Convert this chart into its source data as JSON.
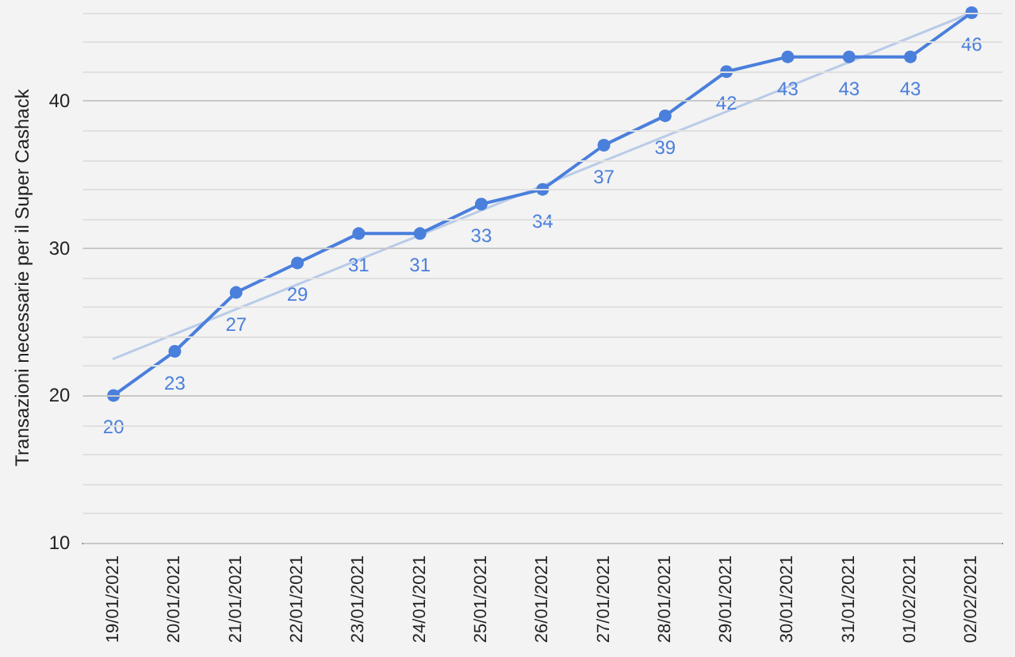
{
  "chart_data": {
    "type": "line",
    "ylabel": "Transazioni necessarie per il Super Cashack",
    "categories": [
      "19/01/2021",
      "20/01/2021",
      "21/01/2021",
      "22/01/2021",
      "23/01/2021",
      "24/01/2021",
      "25/01/2021",
      "26/01/2021",
      "27/01/2021",
      "28/01/2021",
      "29/01/2021",
      "30/01/2021",
      "31/01/2021",
      "01/02/2021",
      "02/02/2021"
    ],
    "series": [
      {
        "color": "#4a7fdc",
        "values": [
          20,
          23,
          27,
          29,
          31,
          31,
          33,
          34,
          37,
          39,
          42,
          43,
          43,
          43,
          46
        ],
        "data_labels": true,
        "marker": "circle"
      },
      {
        "type": "line",
        "color": "#b9cbe8",
        "x": [
          "19/01/2021",
          "02/02/2021"
        ],
        "values": [
          22.5,
          46
        ],
        "marker": "none"
      }
    ],
    "ylim": [
      10,
      46
    ],
    "yticks": [
      10,
      {
        "value": 12,
        "label": null
      },
      {
        "value": 14,
        "label": null
      },
      {
        "value": 16,
        "label": null
      },
      {
        "value": 18,
        "label": null
      },
      20,
      {
        "value": 22,
        "label": null
      },
      {
        "value": 24,
        "label": null
      },
      {
        "value": 26,
        "label": null
      },
      {
        "value": 28,
        "label": null
      },
      30,
      {
        "value": 32,
        "label": null
      },
      {
        "value": 34,
        "label": null
      },
      {
        "value": 36,
        "label": null
      },
      {
        "value": 38,
        "label": null
      },
      40,
      {
        "value": 42,
        "label": null
      },
      {
        "value": 44,
        "label": null
      },
      {
        "value": 46,
        "label": null
      }
    ],
    "grid": "y",
    "line_style": "solid"
  }
}
